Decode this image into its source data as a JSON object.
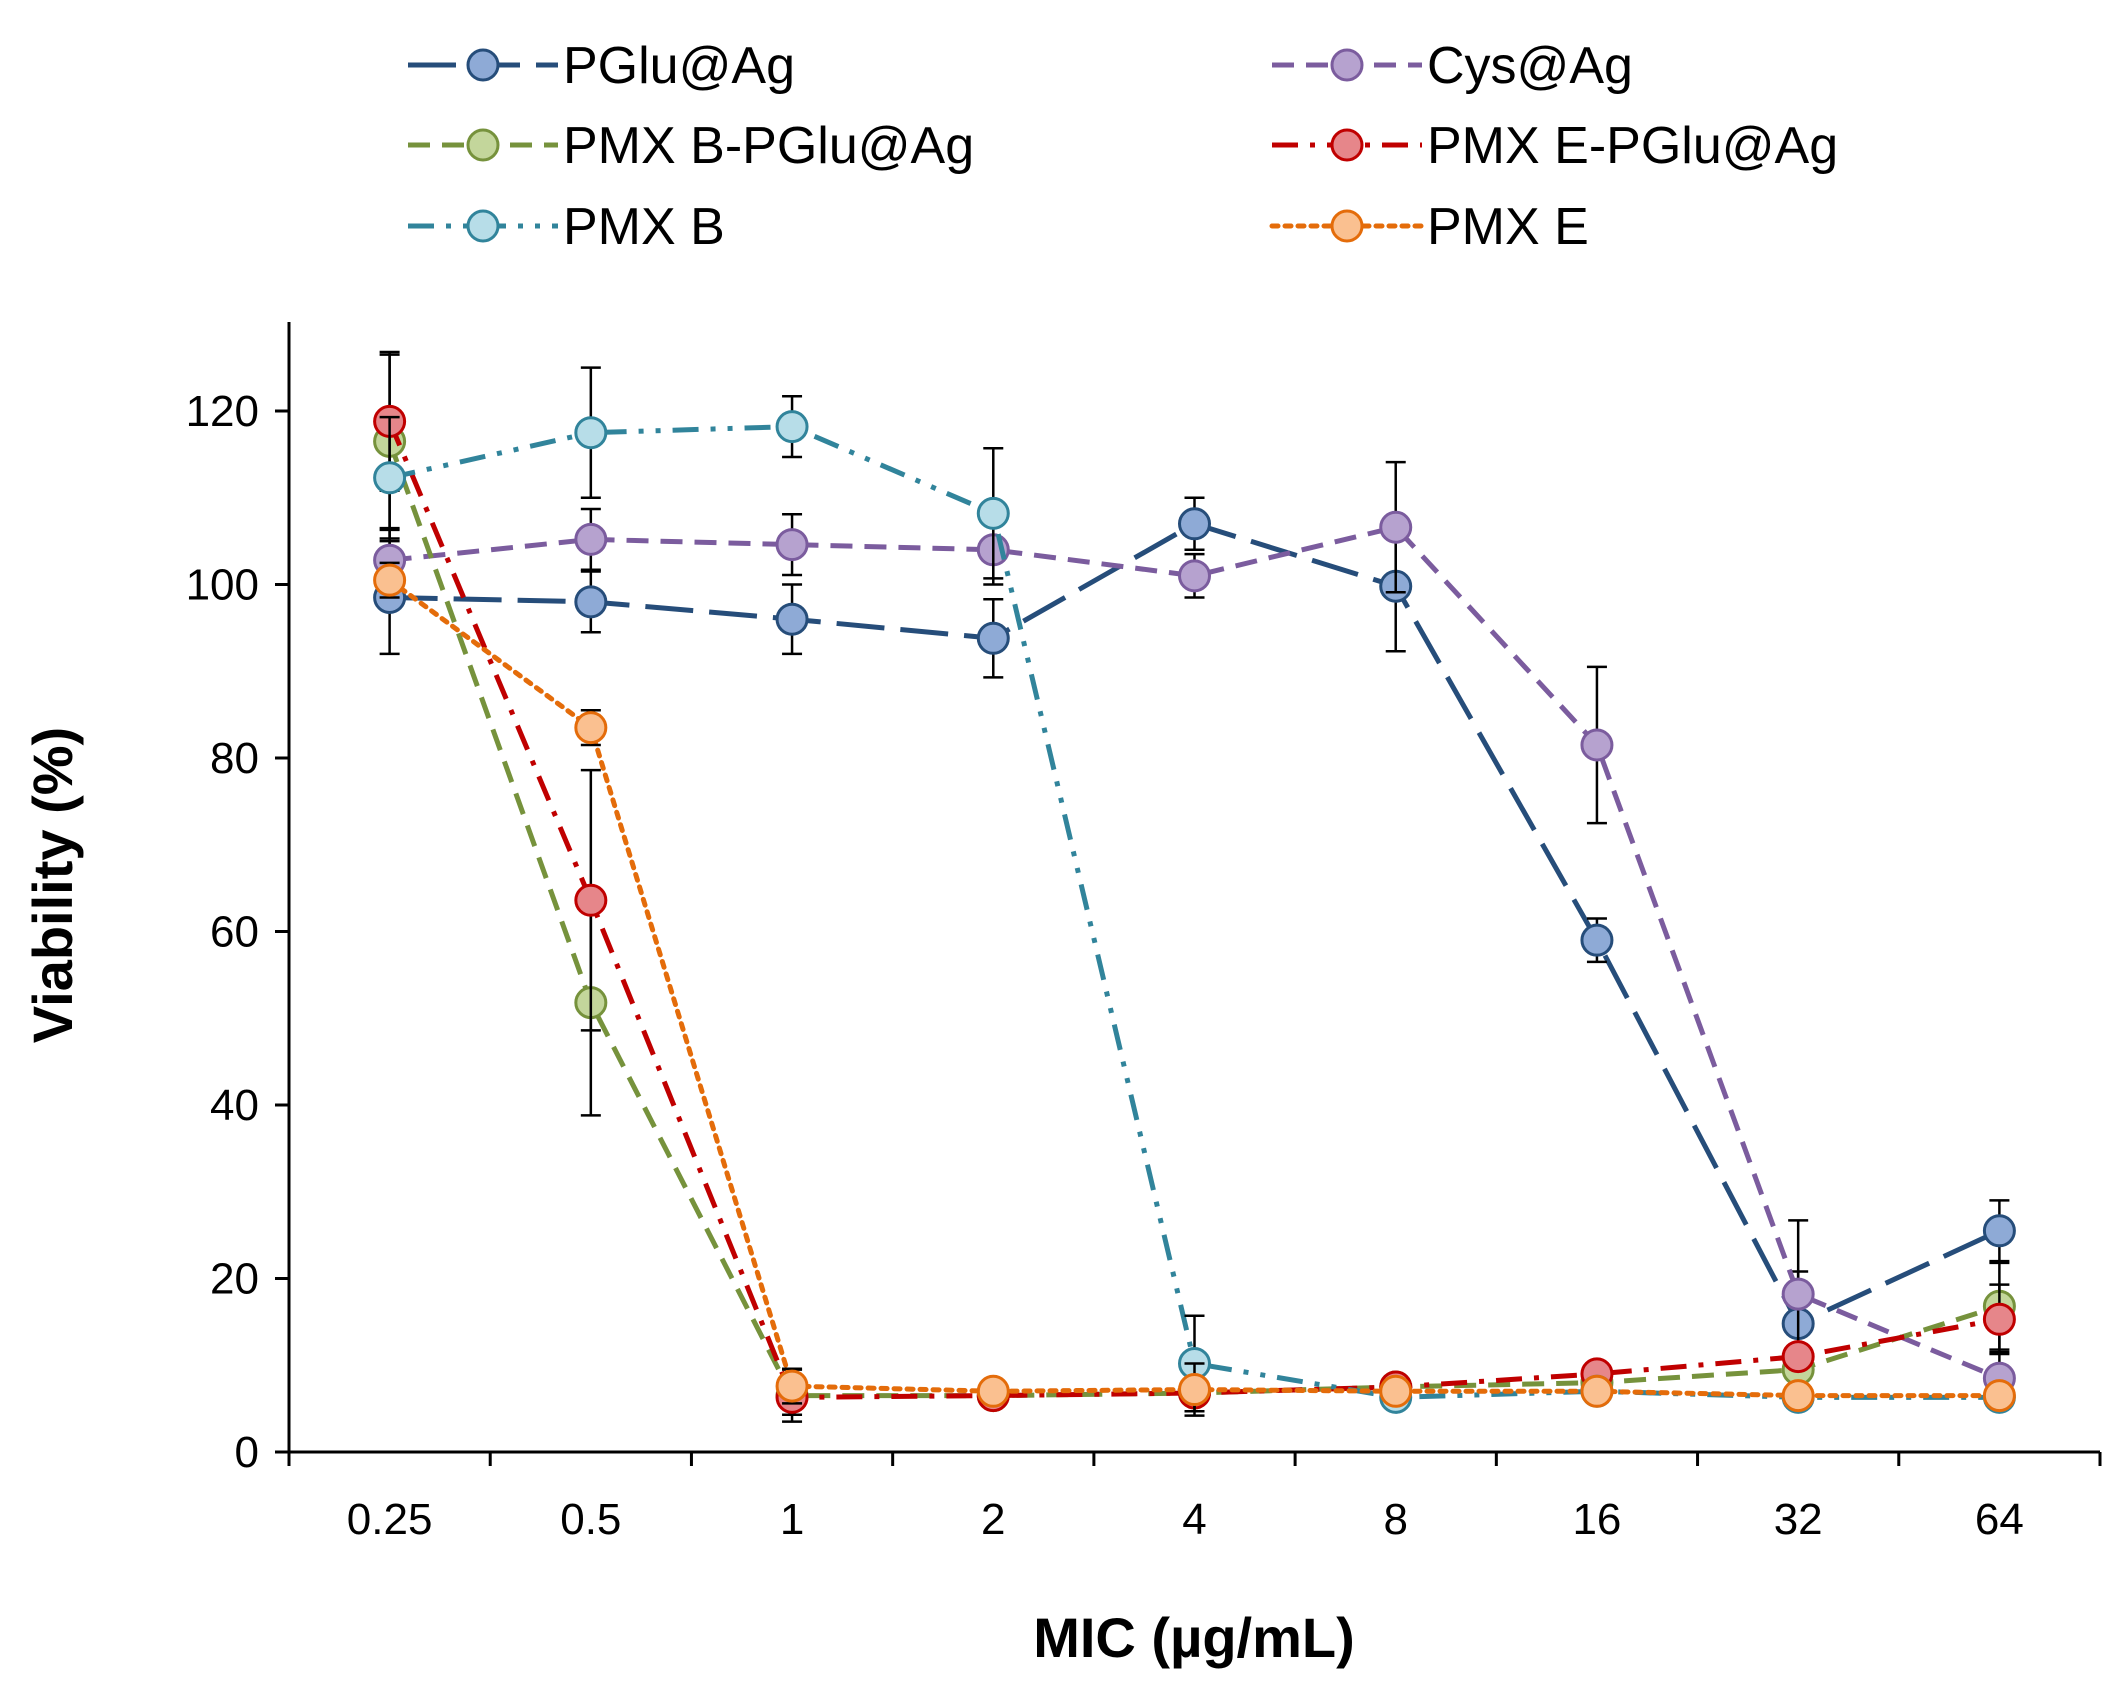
{
  "chart_data": {
    "type": "line",
    "title": "",
    "xlabel": "MIC (µg/mL)",
    "ylabel": "Viability (%)",
    "categories": [
      "0.25",
      "0.5",
      "1",
      "2",
      "4",
      "8",
      "16",
      "32",
      "64"
    ],
    "ylim": [
      0,
      130
    ],
    "yticks": [
      0,
      20,
      40,
      60,
      80,
      100,
      120
    ],
    "grid": false,
    "legend_position": "top",
    "series": [
      {
        "name": "PGlu@Ag",
        "color": "#264d7a",
        "marker_fill": "#8eaad6",
        "dash": "long-dash",
        "values": [
          98.5,
          98.0,
          96.0,
          93.8,
          107.0,
          99.8,
          59.0,
          14.8,
          25.5
        ],
        "errors": [
          6.5,
          3.5,
          4.0,
          4.5,
          3.0,
          7.5,
          2.5,
          6.0,
          3.5
        ]
      },
      {
        "name": "Cys@Ag",
        "color": "#7b5c9e",
        "marker_fill": "#b6a2cf",
        "dash": "dash",
        "values": [
          102.8,
          105.2,
          104.6,
          104.0,
          101.0,
          106.6,
          81.5,
          18.2,
          8.5
        ],
        "errors": [
          3.5,
          3.5,
          3.5,
          4.0,
          2.5,
          7.5,
          9.0,
          8.5,
          3.0
        ]
      },
      {
        "name": "PMX B-PGlu@Ag",
        "color": "#76923c",
        "marker_fill": "#c3d69b",
        "dash": "dash",
        "values": [
          116.5,
          51.8,
          6.5,
          6.5,
          6.8,
          7.5,
          8.0,
          9.5,
          16.8
        ],
        "errors": [
          10.0,
          13.0,
          3.0,
          1.0,
          1.0,
          1.0,
          1.0,
          1.0,
          5.0
        ]
      },
      {
        "name": "PMX E-PGlu@Ag",
        "color": "#c00000",
        "marker_fill": "#e6868a",
        "dash": "dash-dot",
        "values": [
          118.8,
          63.6,
          6.3,
          6.5,
          6.8,
          7.5,
          9.0,
          11.0,
          15.3
        ],
        "errors": [
          8.0,
          15.0,
          2.0,
          1.0,
          1.0,
          1.0,
          1.0,
          1.0,
          4.0
        ]
      },
      {
        "name": "PMX B",
        "color": "#31849b",
        "marker_fill": "#b7dde8",
        "dash": "dash-dot-dot",
        "values": [
          112.3,
          117.5,
          118.2,
          108.2,
          10.2,
          6.3,
          7.0,
          6.3,
          6.3
        ],
        "errors": [
          7.0,
          7.5,
          3.5,
          7.5,
          5.5,
          1.0,
          1.0,
          1.0,
          1.0
        ]
      },
      {
        "name": "PMX E",
        "color": "#e46c0a",
        "marker_fill": "#fac090",
        "dash": "dot",
        "values": [
          100.5,
          83.5,
          7.6,
          7.0,
          7.2,
          7.0,
          7.0,
          6.5,
          6.5
        ],
        "errors": [
          2.0,
          2.0,
          2.0,
          1.0,
          3.0,
          1.0,
          1.0,
          1.0,
          1.0
        ]
      }
    ]
  }
}
